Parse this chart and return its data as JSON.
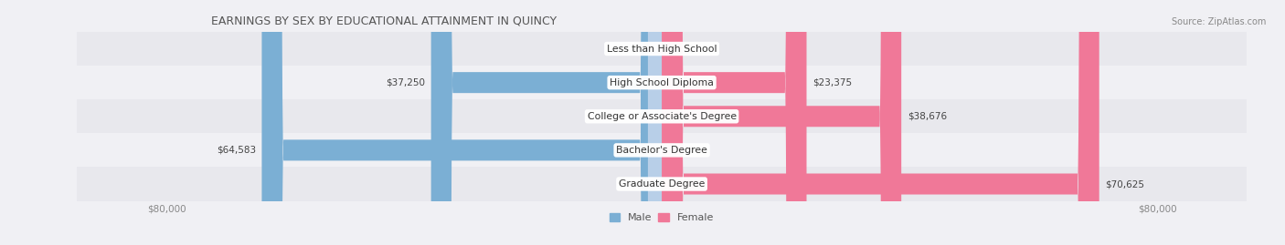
{
  "title": "EARNINGS BY SEX BY EDUCATIONAL ATTAINMENT IN QUINCY",
  "source": "Source: ZipAtlas.com",
  "categories": [
    "Less than High School",
    "High School Diploma",
    "College or Associate's Degree",
    "Bachelor's Degree",
    "Graduate Degree"
  ],
  "male_values": [
    0,
    37250,
    0,
    64583,
    0
  ],
  "female_values": [
    0,
    23375,
    38676,
    0,
    70625
  ],
  "male_color": "#7bafd4",
  "male_color_light": "#b8cfe8",
  "female_color": "#f07898",
  "female_color_light": "#f5b8cb",
  "bar_height": 0.62,
  "max_value": 80000,
  "legend_male": "Male",
  "legend_female": "Female",
  "bg_odd": "#e8e8ed",
  "bg_even": "#f0f0f4",
  "figure_bg": "#f0f0f4"
}
